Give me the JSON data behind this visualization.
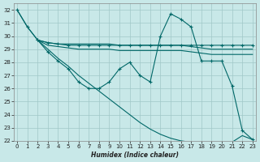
{
  "bg_color": "#c8e8e8",
  "grid_color": "#a0c8c8",
  "line_color": "#006868",
  "xlabel": "Humidex (Indice chaleur)",
  "xlim": [
    -0.3,
    23.3
  ],
  "ylim": [
    22,
    32.5
  ],
  "yticks": [
    22,
    23,
    24,
    25,
    26,
    27,
    28,
    29,
    30,
    31,
    32
  ],
  "xticks": [
    0,
    1,
    2,
    3,
    4,
    5,
    6,
    7,
    8,
    9,
    10,
    11,
    12,
    13,
    14,
    15,
    16,
    17,
    18,
    19,
    20,
    21,
    22,
    23
  ],
  "line_marked": {
    "x": [
      0,
      1,
      2,
      3,
      4,
      5,
      6,
      7,
      8,
      9,
      10,
      11,
      12,
      13,
      14,
      15,
      16,
      17,
      18,
      19,
      20,
      21,
      22,
      23
    ],
    "y": [
      32,
      30.7,
      29.7,
      29.5,
      29.4,
      29.3,
      29.3,
      29.3,
      29.3,
      29.3,
      29.3,
      29.3,
      29.3,
      29.3,
      29.3,
      29.3,
      29.3,
      29.3,
      29.3,
      29.3,
      29.3,
      29.3,
      29.3,
      29.3
    ]
  },
  "line_flat_upper": {
    "x": [
      2,
      3,
      4,
      5,
      6,
      7,
      8,
      9,
      10,
      11,
      12,
      13,
      14,
      15,
      16,
      17,
      18,
      19,
      20,
      21,
      22,
      23
    ],
    "y": [
      29.7,
      29.5,
      29.4,
      29.4,
      29.4,
      29.4,
      29.4,
      29.4,
      29.3,
      29.3,
      29.3,
      29.3,
      29.3,
      29.3,
      29.3,
      29.2,
      29.1,
      29.0,
      29.0,
      29.0,
      29.0,
      29.0
    ]
  },
  "line_flat_lower": {
    "x": [
      2,
      3,
      4,
      5,
      6,
      7,
      8,
      9,
      10,
      11,
      12,
      13,
      14,
      15,
      16,
      17,
      18,
      19,
      20,
      21,
      22,
      23
    ],
    "y": [
      29.7,
      29.3,
      29.2,
      29.1,
      29.0,
      29.0,
      29.0,
      29.0,
      28.9,
      28.9,
      28.9,
      28.9,
      28.9,
      28.9,
      28.9,
      28.8,
      28.7,
      28.6,
      28.6,
      28.6,
      28.6,
      28.6
    ]
  },
  "line_wavy": {
    "x": [
      2,
      3,
      4,
      5,
      6,
      7,
      8,
      9,
      10,
      11,
      12,
      13,
      14,
      15,
      16,
      17,
      18,
      19,
      20,
      21,
      22,
      23
    ],
    "y": [
      29.7,
      28.8,
      28.1,
      27.5,
      26.5,
      26.0,
      26.0,
      26.5,
      27.5,
      28.0,
      27.0,
      26.5,
      30.0,
      31.7,
      31.3,
      30.7,
      28.1,
      28.1,
      28.1,
      26.2,
      22.8,
      22.1
    ]
  },
  "line_diagonal": {
    "x": [
      0,
      1,
      2,
      3,
      4,
      5,
      6,
      7,
      8,
      9,
      10,
      11,
      12,
      13,
      14,
      15,
      16,
      17,
      18,
      19,
      20,
      21,
      22,
      23
    ],
    "y": [
      32,
      30.7,
      29.7,
      29.0,
      28.3,
      27.7,
      27.0,
      26.4,
      25.8,
      25.2,
      24.6,
      24.0,
      23.4,
      22.9,
      22.5,
      22.2,
      22.0,
      21.9,
      21.9,
      21.9,
      21.9,
      21.9,
      22.4,
      22.1
    ]
  }
}
